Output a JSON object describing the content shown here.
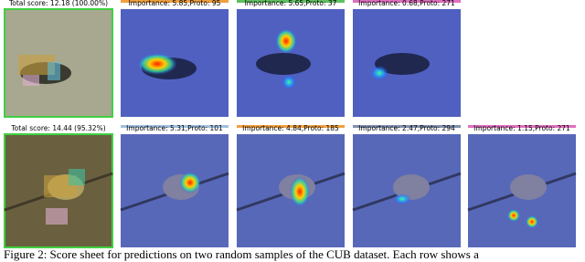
{
  "rows": [
    {
      "panels": [
        {
          "label": "Total score: 12.18 (100.00%)"
        },
        {
          "label": "Importance: 5.85,Proto: 95"
        },
        {
          "label": "Importance: 5.65,Proto: 37"
        },
        {
          "label": "Importance: 0.68,Proto: 271"
        }
      ]
    },
    {
      "panels": [
        {
          "label": "Total score: 14.44 (95.32%)"
        },
        {
          "label": "Importance: 5.31,Proto: 101"
        },
        {
          "label": "Importance: 4.84,Proto: 185"
        },
        {
          "label": "Importance: 2.47,Proto: 294"
        },
        {
          "label": "Importance: 1.15,Proto: 271"
        }
      ]
    }
  ],
  "caption": "Figure 2: Score sheet for predictions on two random samples of the CUB dataset. Each row shows a"
}
